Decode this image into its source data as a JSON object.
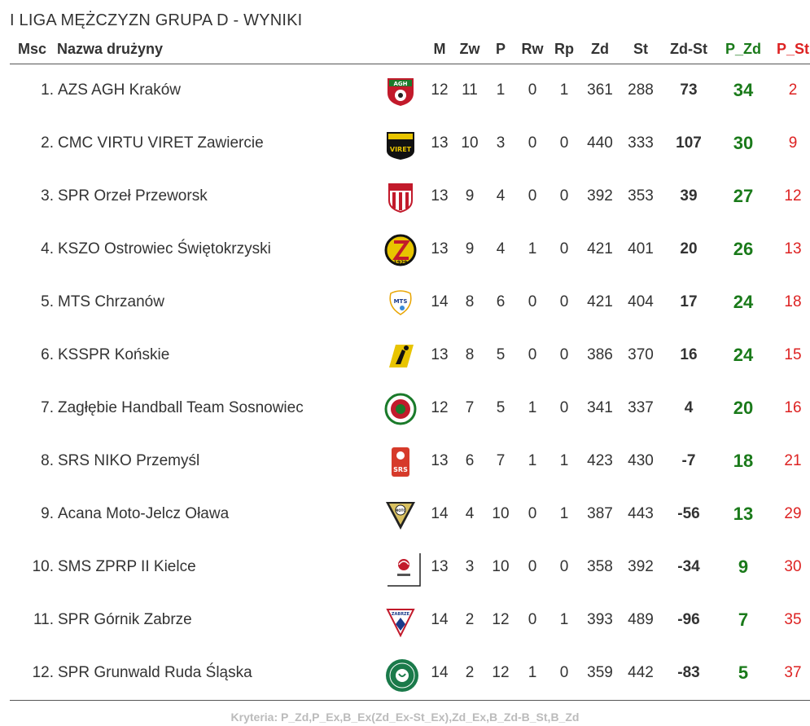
{
  "title": "I LIGA MĘŻCZYZN GRUPA D - WYNIKI",
  "headers": {
    "msc": "Msc",
    "team": "Nazwa drużyny",
    "m": "M",
    "zw": "Zw",
    "p": "P",
    "rw": "Rw",
    "rp": "Rp",
    "zd": "Zd",
    "st": "St",
    "diff": "Zd-St",
    "pzd": "P_Zd",
    "pst": "P_St"
  },
  "colors": {
    "points_for": "#1a7a1a",
    "points_against": "#dd2222"
  },
  "rows": [
    {
      "rank": "1.",
      "team": "AZS AGH Kraków",
      "logo": "agh-logo",
      "m": "12",
      "zw": "11",
      "p": "1",
      "rw": "0",
      "rp": "1",
      "zd": "361",
      "st": "288",
      "diff": "73",
      "pzd": "34",
      "pst": "2"
    },
    {
      "rank": "2.",
      "team": "CMC VIRTU VIRET Zawiercie",
      "logo": "viret-logo",
      "m": "13",
      "zw": "10",
      "p": "3",
      "rw": "0",
      "rp": "0",
      "zd": "440",
      "st": "333",
      "diff": "107",
      "pzd": "30",
      "pst": "9"
    },
    {
      "rank": "3.",
      "team": "SPR Orzeł Przeworsk",
      "logo": "orzel-logo",
      "m": "13",
      "zw": "9",
      "p": "4",
      "rw": "0",
      "rp": "0",
      "zd": "392",
      "st": "353",
      "diff": "39",
      "pzd": "27",
      "pst": "12"
    },
    {
      "rank": "4.",
      "team": "KSZO Ostrowiec Świętokrzyski",
      "logo": "kszo-logo",
      "m": "13",
      "zw": "9",
      "p": "4",
      "rw": "1",
      "rp": "0",
      "zd": "421",
      "st": "401",
      "diff": "20",
      "pzd": "26",
      "pst": "13"
    },
    {
      "rank": "5.",
      "team": "MTS Chrzanów",
      "logo": "mts-logo",
      "m": "14",
      "zw": "8",
      "p": "6",
      "rw": "0",
      "rp": "0",
      "zd": "421",
      "st": "404",
      "diff": "17",
      "pzd": "24",
      "pst": "18"
    },
    {
      "rank": "6.",
      "team": "KSSPR Końskie",
      "logo": "ksspr-logo",
      "m": "13",
      "zw": "8",
      "p": "5",
      "rw": "0",
      "rp": "0",
      "zd": "386",
      "st": "370",
      "diff": "16",
      "pzd": "24",
      "pst": "15"
    },
    {
      "rank": "7.",
      "team": "Zagłębie Handball Team Sosnowiec",
      "logo": "zaglebie-logo",
      "m": "12",
      "zw": "7",
      "p": "5",
      "rw": "1",
      "rp": "0",
      "zd": "341",
      "st": "337",
      "diff": "4",
      "pzd": "20",
      "pst": "16"
    },
    {
      "rank": "8.",
      "team": "SRS NIKO Przemyśl",
      "logo": "srs-logo",
      "m": "13",
      "zw": "6",
      "p": "7",
      "rw": "1",
      "rp": "1",
      "zd": "423",
      "st": "430",
      "diff": "-7",
      "pzd": "18",
      "pst": "21"
    },
    {
      "rank": "9.",
      "team": "Acana Moto-Jelcz Oława",
      "logo": "moto-logo",
      "m": "14",
      "zw": "4",
      "p": "10",
      "rw": "0",
      "rp": "1",
      "zd": "387",
      "st": "443",
      "diff": "-56",
      "pzd": "13",
      "pst": "29"
    },
    {
      "rank": "10.",
      "team": "SMS ZPRP II Kielce",
      "logo": "zprp-logo",
      "m": "13",
      "zw": "3",
      "p": "10",
      "rw": "0",
      "rp": "0",
      "zd": "358",
      "st": "392",
      "diff": "-34",
      "pzd": "9",
      "pst": "30"
    },
    {
      "rank": "11.",
      "team": "SPR Górnik Zabrze",
      "logo": "gornik-logo",
      "m": "14",
      "zw": "2",
      "p": "12",
      "rw": "0",
      "rp": "1",
      "zd": "393",
      "st": "489",
      "diff": "-96",
      "pzd": "7",
      "pst": "35"
    },
    {
      "rank": "12.",
      "team": "SPR Grunwald Ruda Śląska",
      "logo": "grunwald-logo",
      "m": "14",
      "zw": "2",
      "p": "12",
      "rw": "1",
      "rp": "0",
      "zd": "359",
      "st": "442",
      "diff": "-83",
      "pzd": "5",
      "pst": "37"
    }
  ],
  "logo_text": {
    "agh": "AGH",
    "viret": "VIRET",
    "kszo": "1929",
    "mts": "MTS",
    "srs": "SRS",
    "moto": "MOTO",
    "gornik": "ZABRZE"
  },
  "footer": "Kryteria: P_Zd,P_Ex,B_Ex(Zd_Ex-St_Ex),Zd_Ex,B_Zd-B_St,B_Zd"
}
